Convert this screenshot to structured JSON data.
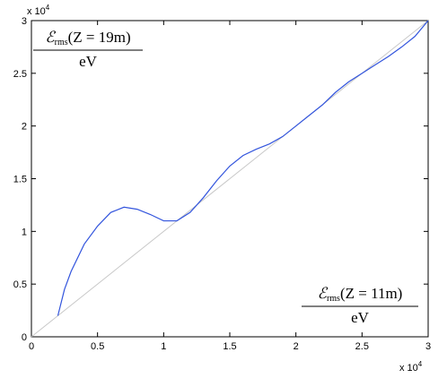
{
  "chart_data": {
    "type": "line",
    "x_label": {
      "symbol": "ℰ",
      "subscript": "rms",
      "argument": "(Z = 11m)",
      "unit": "eV"
    },
    "y_label": {
      "symbol": "ℰ",
      "subscript": "rms",
      "argument": "(Z = 19m)",
      "unit": "eV"
    },
    "x_multiplier": {
      "base": "x 10",
      "exponent": "4"
    },
    "y_multiplier": {
      "base": "x 10",
      "exponent": "4"
    },
    "xlim": [
      0,
      30000
    ],
    "ylim": [
      0,
      30000
    ],
    "xticks": [
      {
        "value": 0,
        "label": "0"
      },
      {
        "value": 5000,
        "label": "0.5"
      },
      {
        "value": 10000,
        "label": "1"
      },
      {
        "value": 15000,
        "label": "1.5"
      },
      {
        "value": 20000,
        "label": "2"
      },
      {
        "value": 25000,
        "label": "2.5"
      },
      {
        "value": 30000,
        "label": "3"
      }
    ],
    "yticks": [
      {
        "value": 0,
        "label": "0"
      },
      {
        "value": 5000,
        "label": "0.5"
      },
      {
        "value": 10000,
        "label": "1"
      },
      {
        "value": 15000,
        "label": "1.5"
      },
      {
        "value": 20000,
        "label": "2"
      },
      {
        "value": 25000,
        "label": "2.5"
      },
      {
        "value": 30000,
        "label": "3"
      }
    ],
    "reference_line": {
      "color": "#c8c8c8",
      "x": [
        0,
        30000
      ],
      "y": [
        0,
        30000
      ]
    },
    "series": [
      {
        "color": "#3355dd",
        "x": [
          2000,
          2500,
          3000,
          4000,
          5000,
          6000,
          7000,
          8000,
          9000,
          10000,
          11000,
          12000,
          13000,
          14000,
          15000,
          16000,
          17000,
          18000,
          19000,
          20000,
          21000,
          22000,
          23000,
          24000,
          25000,
          26000,
          27000,
          28000,
          29000,
          30000
        ],
        "values": [
          2000,
          4500,
          6200,
          8800,
          10500,
          11800,
          12300,
          12100,
          11600,
          11000,
          11000,
          11800,
          13200,
          14800,
          16200,
          17200,
          17800,
          18300,
          19000,
          20000,
          21000,
          22000,
          23200,
          24200,
          25000,
          25800,
          26600,
          27500,
          28500,
          30000
        ]
      }
    ]
  }
}
